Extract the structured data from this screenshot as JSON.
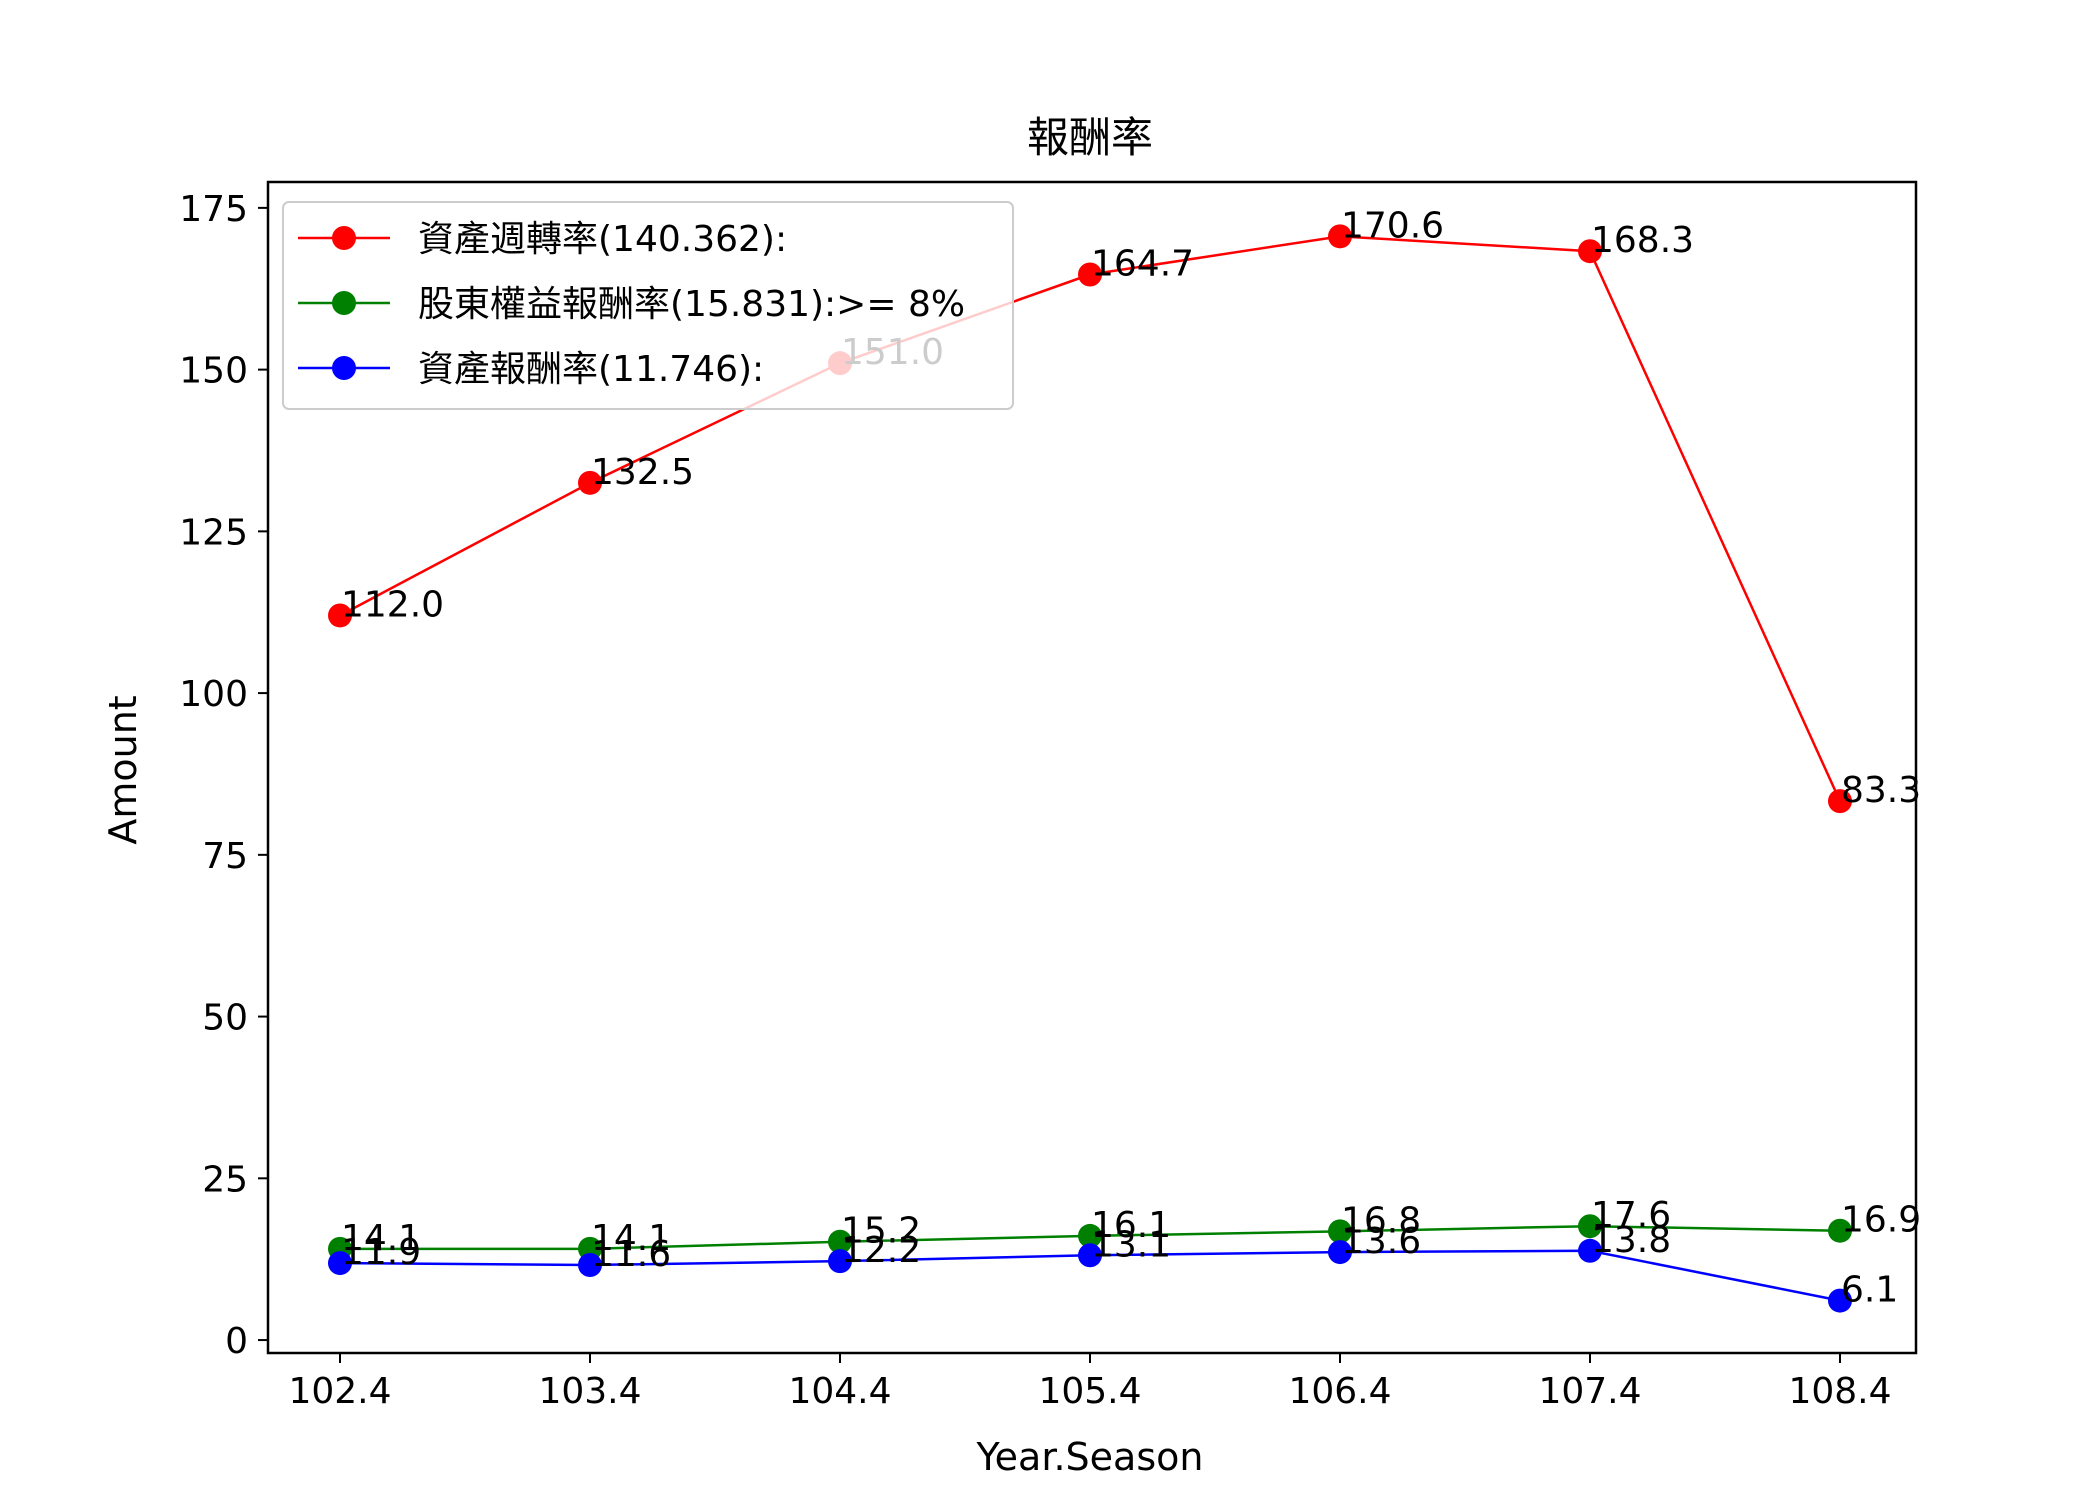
{
  "chart_data": {
    "type": "line",
    "title": "報酬率",
    "xlabel": "Year.Season",
    "ylabel": "Amount",
    "categories": [
      "102.4",
      "103.4",
      "104.4",
      "105.4",
      "106.4",
      "107.4",
      "108.4"
    ],
    "yticks": [
      "0",
      "25",
      "50",
      "75",
      "100",
      "125",
      "150",
      "175"
    ],
    "ylim": [
      -2,
      179
    ],
    "grid": false,
    "legend_position": "top-left",
    "series": [
      {
        "name": "資產週轉率(140.362):",
        "color": "#ff0000",
        "values": [
          112.0,
          132.5,
          151.0,
          164.7,
          170.6,
          168.3,
          83.3
        ],
        "labels": [
          "112.0",
          "132.5",
          "151.0",
          "164.7",
          "170.6",
          "168.3",
          "83.3"
        ]
      },
      {
        "name": "股東權益報酬率(15.831):>= 8%",
        "color": "#008000",
        "values": [
          14.1,
          14.1,
          15.2,
          16.1,
          16.8,
          17.6,
          16.9
        ],
        "labels": [
          "14.1",
          "14.1",
          "15.2",
          "16.1",
          "16.8",
          "17.6",
          "16.9"
        ]
      },
      {
        "name": "資產報酬率(11.746):",
        "color": "#0000ff",
        "values": [
          11.9,
          11.6,
          12.2,
          13.1,
          13.6,
          13.8,
          6.1
        ],
        "labels": [
          "11.9",
          "11.6",
          "12.2",
          "13.1",
          "13.6",
          "13.8",
          "6.1"
        ]
      }
    ]
  }
}
